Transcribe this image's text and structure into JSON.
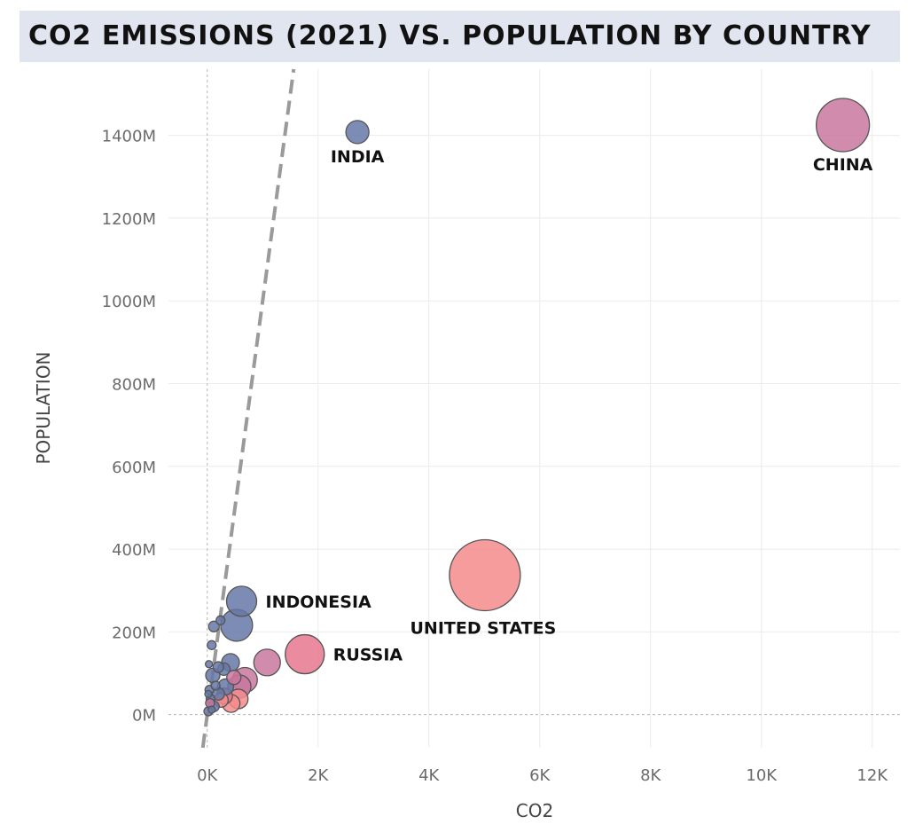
{
  "header": {
    "title": "CO2 EMISSIONS (2021) VS. POPULATION BY COUNTRY"
  },
  "colors": {
    "title_background": "#e1e5ef",
    "grid": "#ebebeb",
    "reference_line": "#9a9a9a",
    "blue": "#6678a8",
    "pink": "#c9779f",
    "salmon": "#f48b8b",
    "red": "#e8778e"
  },
  "chart_data": {
    "type": "scatter",
    "title": "CO2 EMISSIONS (2021) VS. POPULATION BY COUNTRY",
    "xlabel": "CO2",
    "ylabel": "POPULATION",
    "xlim": [
      -700,
      12500
    ],
    "ylim": [
      -80,
      1560
    ],
    "x_ticks": [
      0,
      2000,
      4000,
      6000,
      8000,
      10000,
      12000
    ],
    "x_tick_labels": [
      "0K",
      "2K",
      "4K",
      "6K",
      "8K",
      "10K",
      "12K"
    ],
    "y_ticks": [
      0,
      200,
      400,
      600,
      800,
      1000,
      1200,
      1400
    ],
    "y_tick_labels": [
      "0M",
      "200M",
      "400M",
      "600M",
      "800M",
      "1000M",
      "1200M",
      "1400M"
    ],
    "y_unit": "millions",
    "reference_line": "y = x (dashed)",
    "grid": true,
    "legend": "none",
    "point_size_encodes": "CO2",
    "points": [
      {
        "label": "INDIA",
        "x": 2710,
        "y": 1408,
        "color": "blue",
        "size": 13,
        "label_pos": "below"
      },
      {
        "label": "CHINA",
        "x": 11470,
        "y": 1425,
        "color": "pink",
        "size": 30,
        "label_pos": "below"
      },
      {
        "label": "UNITED STATES",
        "x": 5010,
        "y": 337,
        "color": "salmon",
        "size": 40,
        "label_pos": "below-left"
      },
      {
        "label": "INDONESIA",
        "x": 620,
        "y": 274,
        "color": "blue",
        "size": 17,
        "label_pos": "right"
      },
      {
        "label": "RUSSIA",
        "x": 1760,
        "y": 146,
        "color": "red",
        "size": 22,
        "label_pos": "right"
      },
      {
        "label": "",
        "x": 530,
        "y": 216,
        "color": "blue",
        "size": 18
      },
      {
        "label": "",
        "x": 1080,
        "y": 126,
        "color": "pink",
        "size": 15
      },
      {
        "label": "",
        "x": 680,
        "y": 84,
        "color": "pink",
        "size": 14
      },
      {
        "label": "",
        "x": 580,
        "y": 68,
        "color": "pink",
        "size": 13
      },
      {
        "label": "",
        "x": 420,
        "y": 126,
        "color": "blue",
        "size": 10
      },
      {
        "label": "",
        "x": 300,
        "y": 110,
        "color": "blue",
        "size": 7
      },
      {
        "label": "",
        "x": 100,
        "y": 95,
        "color": "blue",
        "size": 8
      },
      {
        "label": "",
        "x": 80,
        "y": 168,
        "color": "blue",
        "size": 5
      },
      {
        "label": "",
        "x": 120,
        "y": 213,
        "color": "blue",
        "size": 6
      },
      {
        "label": "",
        "x": 240,
        "y": 228,
        "color": "blue",
        "size": 5
      },
      {
        "label": "",
        "x": 30,
        "y": 122,
        "color": "blue",
        "size": 4
      },
      {
        "label": "",
        "x": 200,
        "y": 115,
        "color": "blue",
        "size": 6
      },
      {
        "label": "",
        "x": 560,
        "y": 38,
        "color": "salmon",
        "size": 11
      },
      {
        "label": "",
        "x": 430,
        "y": 27,
        "color": "salmon",
        "size": 10
      },
      {
        "label": "",
        "x": 310,
        "y": 45,
        "color": "red",
        "size": 9
      },
      {
        "label": "",
        "x": 250,
        "y": 35,
        "color": "salmon",
        "size": 8
      },
      {
        "label": "",
        "x": 330,
        "y": 67,
        "color": "blue",
        "size": 9
      },
      {
        "label": "",
        "x": 200,
        "y": 50,
        "color": "blue",
        "size": 7
      },
      {
        "label": "",
        "x": 120,
        "y": 20,
        "color": "blue",
        "size": 6
      },
      {
        "label": "",
        "x": 60,
        "y": 38,
        "color": "blue",
        "size": 5
      },
      {
        "label": "",
        "x": 40,
        "y": 60,
        "color": "blue",
        "size": 5
      },
      {
        "label": "",
        "x": 20,
        "y": 8,
        "color": "blue",
        "size": 5
      },
      {
        "label": "",
        "x": 50,
        "y": 28,
        "color": "pink",
        "size": 5
      },
      {
        "label": "",
        "x": 80,
        "y": 12,
        "color": "blue",
        "size": 4
      },
      {
        "label": "",
        "x": 150,
        "y": 70,
        "color": "blue",
        "size": 5
      },
      {
        "label": "",
        "x": 20,
        "y": 50,
        "color": "blue",
        "size": 4
      },
      {
        "label": "",
        "x": 480,
        "y": 90,
        "color": "pink",
        "size": 8
      }
    ]
  }
}
